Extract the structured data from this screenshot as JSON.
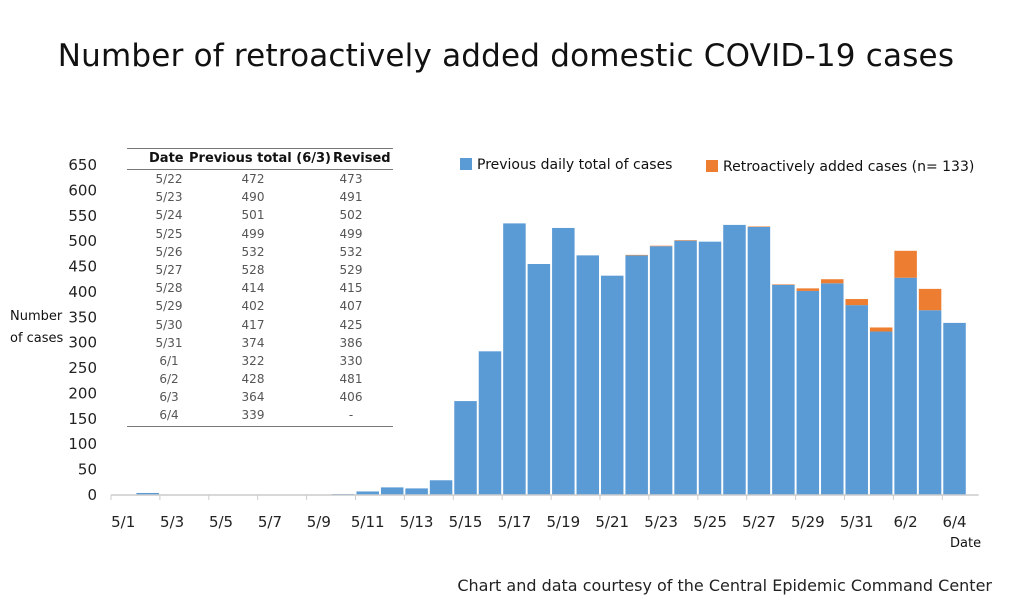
{
  "title": "Number of retroactively added domestic COVID-19 cases",
  "credit": "Chart and data courtesy of the Central Epidemic Command Center",
  "colors": {
    "previous": "#5b9bd5",
    "added": "#ed7d31",
    "axis": "#cccccc"
  },
  "legend": {
    "previous_label": "Previous daily total of cases",
    "added_label": "Retroactively added cases (n= 133)"
  },
  "inset_table": {
    "headers": {
      "date": "Date",
      "previous": "Previous total (6/3)",
      "revised": "Revised"
    },
    "rows": [
      {
        "date": "5/22",
        "previous": "472",
        "revised": "473"
      },
      {
        "date": "5/23",
        "previous": "490",
        "revised": "491"
      },
      {
        "date": "5/24",
        "previous": "501",
        "revised": "502"
      },
      {
        "date": "5/25",
        "previous": "499",
        "revised": "499"
      },
      {
        "date": "5/26",
        "previous": "532",
        "revised": "532"
      },
      {
        "date": "5/27",
        "previous": "528",
        "revised": "529"
      },
      {
        "date": "5/28",
        "previous": "414",
        "revised": "415"
      },
      {
        "date": "5/29",
        "previous": "402",
        "revised": "407"
      },
      {
        "date": "5/30",
        "previous": "417",
        "revised": "425"
      },
      {
        "date": "5/31",
        "previous": "374",
        "revised": "386"
      },
      {
        "date": "6/1",
        "previous": "322",
        "revised": "330"
      },
      {
        "date": "6/2",
        "previous": "428",
        "revised": "481"
      },
      {
        "date": "6/3",
        "previous": "364",
        "revised": "406"
      },
      {
        "date": "6/4",
        "previous": "339",
        "revised": "-"
      }
    ]
  },
  "chart_data": {
    "type": "bar",
    "stacked": true,
    "title": "Number of retroactively added domestic COVID-19 cases",
    "xlabel": "Date",
    "ylabel": "Number of cases",
    "ylim": [
      0,
      650
    ],
    "yticks": [
      "0",
      "50",
      "100",
      "150",
      "200",
      "250",
      "300",
      "350",
      "400",
      "450",
      "500",
      "550",
      "600",
      "650"
    ],
    "grid": false,
    "legend_position": "top-right",
    "categories": [
      "5/1",
      "5/2",
      "5/3",
      "5/4",
      "5/5",
      "5/6",
      "5/7",
      "5/8",
      "5/9",
      "5/10",
      "5/11",
      "5/12",
      "5/13",
      "5/14",
      "5/15",
      "5/16",
      "5/17",
      "5/18",
      "5/19",
      "5/20",
      "5/21",
      "5/22",
      "5/23",
      "5/24",
      "5/25",
      "5/26",
      "5/27",
      "5/28",
      "5/29",
      "5/30",
      "5/31",
      "6/1",
      "6/2",
      "6/3",
      "6/4"
    ],
    "tick_labels": [
      "5/1",
      "5/3",
      "5/5",
      "5/7",
      "5/9",
      "5/11",
      "5/13",
      "5/15",
      "5/17",
      "5/19",
      "5/21",
      "5/23",
      "5/25",
      "5/27",
      "5/29",
      "5/31",
      "6/2",
      "6/4"
    ],
    "series": [
      {
        "name": "Previous daily total of cases",
        "values": [
          0,
          4,
          0,
          0,
          0,
          0,
          0,
          0,
          0,
          2,
          7,
          15,
          13,
          29,
          185,
          283,
          535,
          455,
          526,
          472,
          432,
          472,
          490,
          501,
          499,
          532,
          528,
          414,
          402,
          417,
          374,
          322,
          428,
          364,
          339
        ]
      },
      {
        "name": "Retroactively added cases (n= 133)",
        "values": [
          0,
          0,
          0,
          0,
          0,
          0,
          0,
          0,
          0,
          0,
          0,
          0,
          0,
          0,
          0,
          0,
          0,
          0,
          0,
          0,
          0,
          1,
          1,
          1,
          0,
          0,
          1,
          1,
          5,
          8,
          12,
          8,
          53,
          42,
          0
        ]
      }
    ]
  }
}
